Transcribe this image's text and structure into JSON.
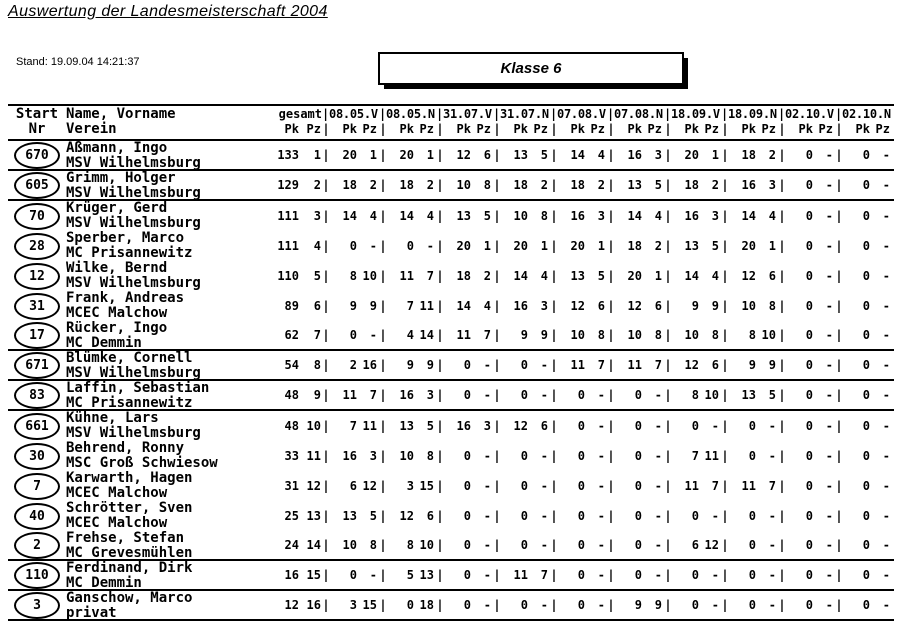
{
  "page": {
    "title": "Auswertung der Landesmeisterschaft 2004",
    "stand": "Stand:  19.09.04 14:21:37",
    "klasse": "Klasse 6"
  },
  "table": {
    "header": {
      "start_line1": "Start",
      "start_line2": "Nr",
      "name_line1": "Name, Vorname",
      "name_line2": "Verein",
      "gesamt": "gesamt",
      "pk": "Pk",
      "pz": "Pz",
      "sep": "|",
      "dates": [
        "08.05.V",
        "08.05.N",
        "31.07.V",
        "31.07.N",
        "07.08.V",
        "07.08.N",
        "18.09.V",
        "18.09.N",
        "02.10.V",
        "02.10.N"
      ]
    },
    "rows": [
      {
        "nr": "670",
        "name": "Aßmann, Ingo",
        "verein": "MSV Wilhelmsburg",
        "gesamt": [
          "133",
          "1"
        ],
        "results": [
          [
            "20",
            "1"
          ],
          [
            "20",
            "1"
          ],
          [
            "12",
            "6"
          ],
          [
            "13",
            "5"
          ],
          [
            "14",
            "4"
          ],
          [
            "16",
            "3"
          ],
          [
            "20",
            "1"
          ],
          [
            "18",
            "2"
          ],
          [
            "0",
            "-"
          ],
          [
            "0",
            "-"
          ]
        ],
        "line_after": true
      },
      {
        "nr": "605",
        "name": "Grimm, Holger",
        "verein": "MSV Wilhelmsburg",
        "gesamt": [
          "129",
          "2"
        ],
        "results": [
          [
            "18",
            "2"
          ],
          [
            "18",
            "2"
          ],
          [
            "10",
            "8"
          ],
          [
            "18",
            "2"
          ],
          [
            "18",
            "2"
          ],
          [
            "13",
            "5"
          ],
          [
            "18",
            "2"
          ],
          [
            "16",
            "3"
          ],
          [
            "0",
            "-"
          ],
          [
            "0",
            "-"
          ]
        ],
        "line_after": true
      },
      {
        "nr": "70",
        "name": "Krüger, Gerd",
        "verein": "MSV Wilhelmsburg",
        "gesamt": [
          "111",
          "3"
        ],
        "results": [
          [
            "14",
            "4"
          ],
          [
            "14",
            "4"
          ],
          [
            "13",
            "5"
          ],
          [
            "10",
            "8"
          ],
          [
            "16",
            "3"
          ],
          [
            "14",
            "4"
          ],
          [
            "16",
            "3"
          ],
          [
            "14",
            "4"
          ],
          [
            "0",
            "-"
          ],
          [
            "0",
            "-"
          ]
        ],
        "line_after": false
      },
      {
        "nr": "28",
        "name": "Sperber, Marco",
        "verein": "MC Prisannewitz",
        "gesamt": [
          "111",
          "4"
        ],
        "results": [
          [
            "0",
            "-"
          ],
          [
            "0",
            "-"
          ],
          [
            "20",
            "1"
          ],
          [
            "20",
            "1"
          ],
          [
            "20",
            "1"
          ],
          [
            "18",
            "2"
          ],
          [
            "13",
            "5"
          ],
          [
            "20",
            "1"
          ],
          [
            "0",
            "-"
          ],
          [
            "0",
            "-"
          ]
        ],
        "line_after": false
      },
      {
        "nr": "12",
        "name": "Wilke, Bernd",
        "verein": "MSV Wilhelmsburg",
        "gesamt": [
          "110",
          "5"
        ],
        "results": [
          [
            "8",
            "10"
          ],
          [
            "11",
            "7"
          ],
          [
            "18",
            "2"
          ],
          [
            "14",
            "4"
          ],
          [
            "13",
            "5"
          ],
          [
            "20",
            "1"
          ],
          [
            "14",
            "4"
          ],
          [
            "12",
            "6"
          ],
          [
            "0",
            "-"
          ],
          [
            "0",
            "-"
          ]
        ],
        "line_after": false
      },
      {
        "nr": "31",
        "name": "Frank, Andreas",
        "verein": "MCEC Malchow",
        "gesamt": [
          "89",
          "6"
        ],
        "results": [
          [
            "9",
            "9"
          ],
          [
            "7",
            "11"
          ],
          [
            "14",
            "4"
          ],
          [
            "16",
            "3"
          ],
          [
            "12",
            "6"
          ],
          [
            "12",
            "6"
          ],
          [
            "9",
            "9"
          ],
          [
            "10",
            "8"
          ],
          [
            "0",
            "-"
          ],
          [
            "0",
            "-"
          ]
        ],
        "line_after": false
      },
      {
        "nr": "17",
        "name": "Rücker, Ingo",
        "verein": "MC Demmin",
        "gesamt": [
          "62",
          "7"
        ],
        "results": [
          [
            "0",
            "-"
          ],
          [
            "4",
            "14"
          ],
          [
            "11",
            "7"
          ],
          [
            "9",
            "9"
          ],
          [
            "10",
            "8"
          ],
          [
            "10",
            "8"
          ],
          [
            "10",
            "8"
          ],
          [
            "8",
            "10"
          ],
          [
            "0",
            "-"
          ],
          [
            "0",
            "-"
          ]
        ],
        "line_after": true
      },
      {
        "nr": "671",
        "name": "Blümke, Cornell",
        "verein": "MSV Wilhelmsburg",
        "gesamt": [
          "54",
          "8"
        ],
        "results": [
          [
            "2",
            "16"
          ],
          [
            "9",
            "9"
          ],
          [
            "0",
            "-"
          ],
          [
            "0",
            "-"
          ],
          [
            "11",
            "7"
          ],
          [
            "11",
            "7"
          ],
          [
            "12",
            "6"
          ],
          [
            "9",
            "9"
          ],
          [
            "0",
            "-"
          ],
          [
            "0",
            "-"
          ]
        ],
        "line_after": true
      },
      {
        "nr": "83",
        "name": "Laffin, Sebastian",
        "verein": "MC Prisannewitz",
        "gesamt": [
          "48",
          "9"
        ],
        "results": [
          [
            "11",
            "7"
          ],
          [
            "16",
            "3"
          ],
          [
            "0",
            "-"
          ],
          [
            "0",
            "-"
          ],
          [
            "0",
            "-"
          ],
          [
            "0",
            "-"
          ],
          [
            "8",
            "10"
          ],
          [
            "13",
            "5"
          ],
          [
            "0",
            "-"
          ],
          [
            "0",
            "-"
          ]
        ],
        "line_after": true
      },
      {
        "nr": "661",
        "name": "Kühne, Lars",
        "verein": "MSV Wilhelmsburg",
        "gesamt": [
          "48",
          "10"
        ],
        "results": [
          [
            "7",
            "11"
          ],
          [
            "13",
            "5"
          ],
          [
            "16",
            "3"
          ],
          [
            "12",
            "6"
          ],
          [
            "0",
            "-"
          ],
          [
            "0",
            "-"
          ],
          [
            "0",
            "-"
          ],
          [
            "0",
            "-"
          ],
          [
            "0",
            "-"
          ],
          [
            "0",
            "-"
          ]
        ],
        "line_after": false
      },
      {
        "nr": "30",
        "name": "Behrend, Ronny",
        "verein": "MSC Groß Schwiesow",
        "gesamt": [
          "33",
          "11"
        ],
        "results": [
          [
            "16",
            "3"
          ],
          [
            "10",
            "8"
          ],
          [
            "0",
            "-"
          ],
          [
            "0",
            "-"
          ],
          [
            "0",
            "-"
          ],
          [
            "0",
            "-"
          ],
          [
            "7",
            "11"
          ],
          [
            "0",
            "-"
          ],
          [
            "0",
            "-"
          ],
          [
            "0",
            "-"
          ]
        ],
        "line_after": false
      },
      {
        "nr": "7",
        "name": "Karwarth, Hagen",
        "verein": "MCEC Malchow",
        "gesamt": [
          "31",
          "12"
        ],
        "results": [
          [
            "6",
            "12"
          ],
          [
            "3",
            "15"
          ],
          [
            "0",
            "-"
          ],
          [
            "0",
            "-"
          ],
          [
            "0",
            "-"
          ],
          [
            "0",
            "-"
          ],
          [
            "11",
            "7"
          ],
          [
            "11",
            "7"
          ],
          [
            "0",
            "-"
          ],
          [
            "0",
            "-"
          ]
        ],
        "line_after": false
      },
      {
        "nr": "40",
        "name": "Schrötter, Sven",
        "verein": "MCEC Malchow",
        "gesamt": [
          "25",
          "13"
        ],
        "results": [
          [
            "13",
            "5"
          ],
          [
            "12",
            "6"
          ],
          [
            "0",
            "-"
          ],
          [
            "0",
            "-"
          ],
          [
            "0",
            "-"
          ],
          [
            "0",
            "-"
          ],
          [
            "0",
            "-"
          ],
          [
            "0",
            "-"
          ],
          [
            "0",
            "-"
          ],
          [
            "0",
            "-"
          ]
        ],
        "line_after": false
      },
      {
        "nr": "2",
        "name": "Frehse, Stefan",
        "verein": "MC Grevesmühlen",
        "gesamt": [
          "24",
          "14"
        ],
        "results": [
          [
            "10",
            "8"
          ],
          [
            "8",
            "10"
          ],
          [
            "0",
            "-"
          ],
          [
            "0",
            "-"
          ],
          [
            "0",
            "-"
          ],
          [
            "0",
            "-"
          ],
          [
            "6",
            "12"
          ],
          [
            "0",
            "-"
          ],
          [
            "0",
            "-"
          ],
          [
            "0",
            "-"
          ]
        ],
        "line_after": true
      },
      {
        "nr": "110",
        "name": "Ferdinand, Dirk",
        "verein": "MC Demmin",
        "gesamt": [
          "16",
          "15"
        ],
        "results": [
          [
            "0",
            "-"
          ],
          [
            "5",
            "13"
          ],
          [
            "0",
            "-"
          ],
          [
            "11",
            "7"
          ],
          [
            "0",
            "-"
          ],
          [
            "0",
            "-"
          ],
          [
            "0",
            "-"
          ],
          [
            "0",
            "-"
          ],
          [
            "0",
            "-"
          ],
          [
            "0",
            "-"
          ]
        ],
        "line_after": true
      },
      {
        "nr": "3",
        "name": "Ganschow, Marco",
        "verein": "privat",
        "gesamt": [
          "12",
          "16"
        ],
        "results": [
          [
            "3",
            "15"
          ],
          [
            "0",
            "18"
          ],
          [
            "0",
            "-"
          ],
          [
            "0",
            "-"
          ],
          [
            "0",
            "-"
          ],
          [
            "9",
            "9"
          ],
          [
            "0",
            "-"
          ],
          [
            "0",
            "-"
          ],
          [
            "0",
            "-"
          ],
          [
            "0",
            "-"
          ]
        ],
        "line_after": true
      }
    ]
  }
}
